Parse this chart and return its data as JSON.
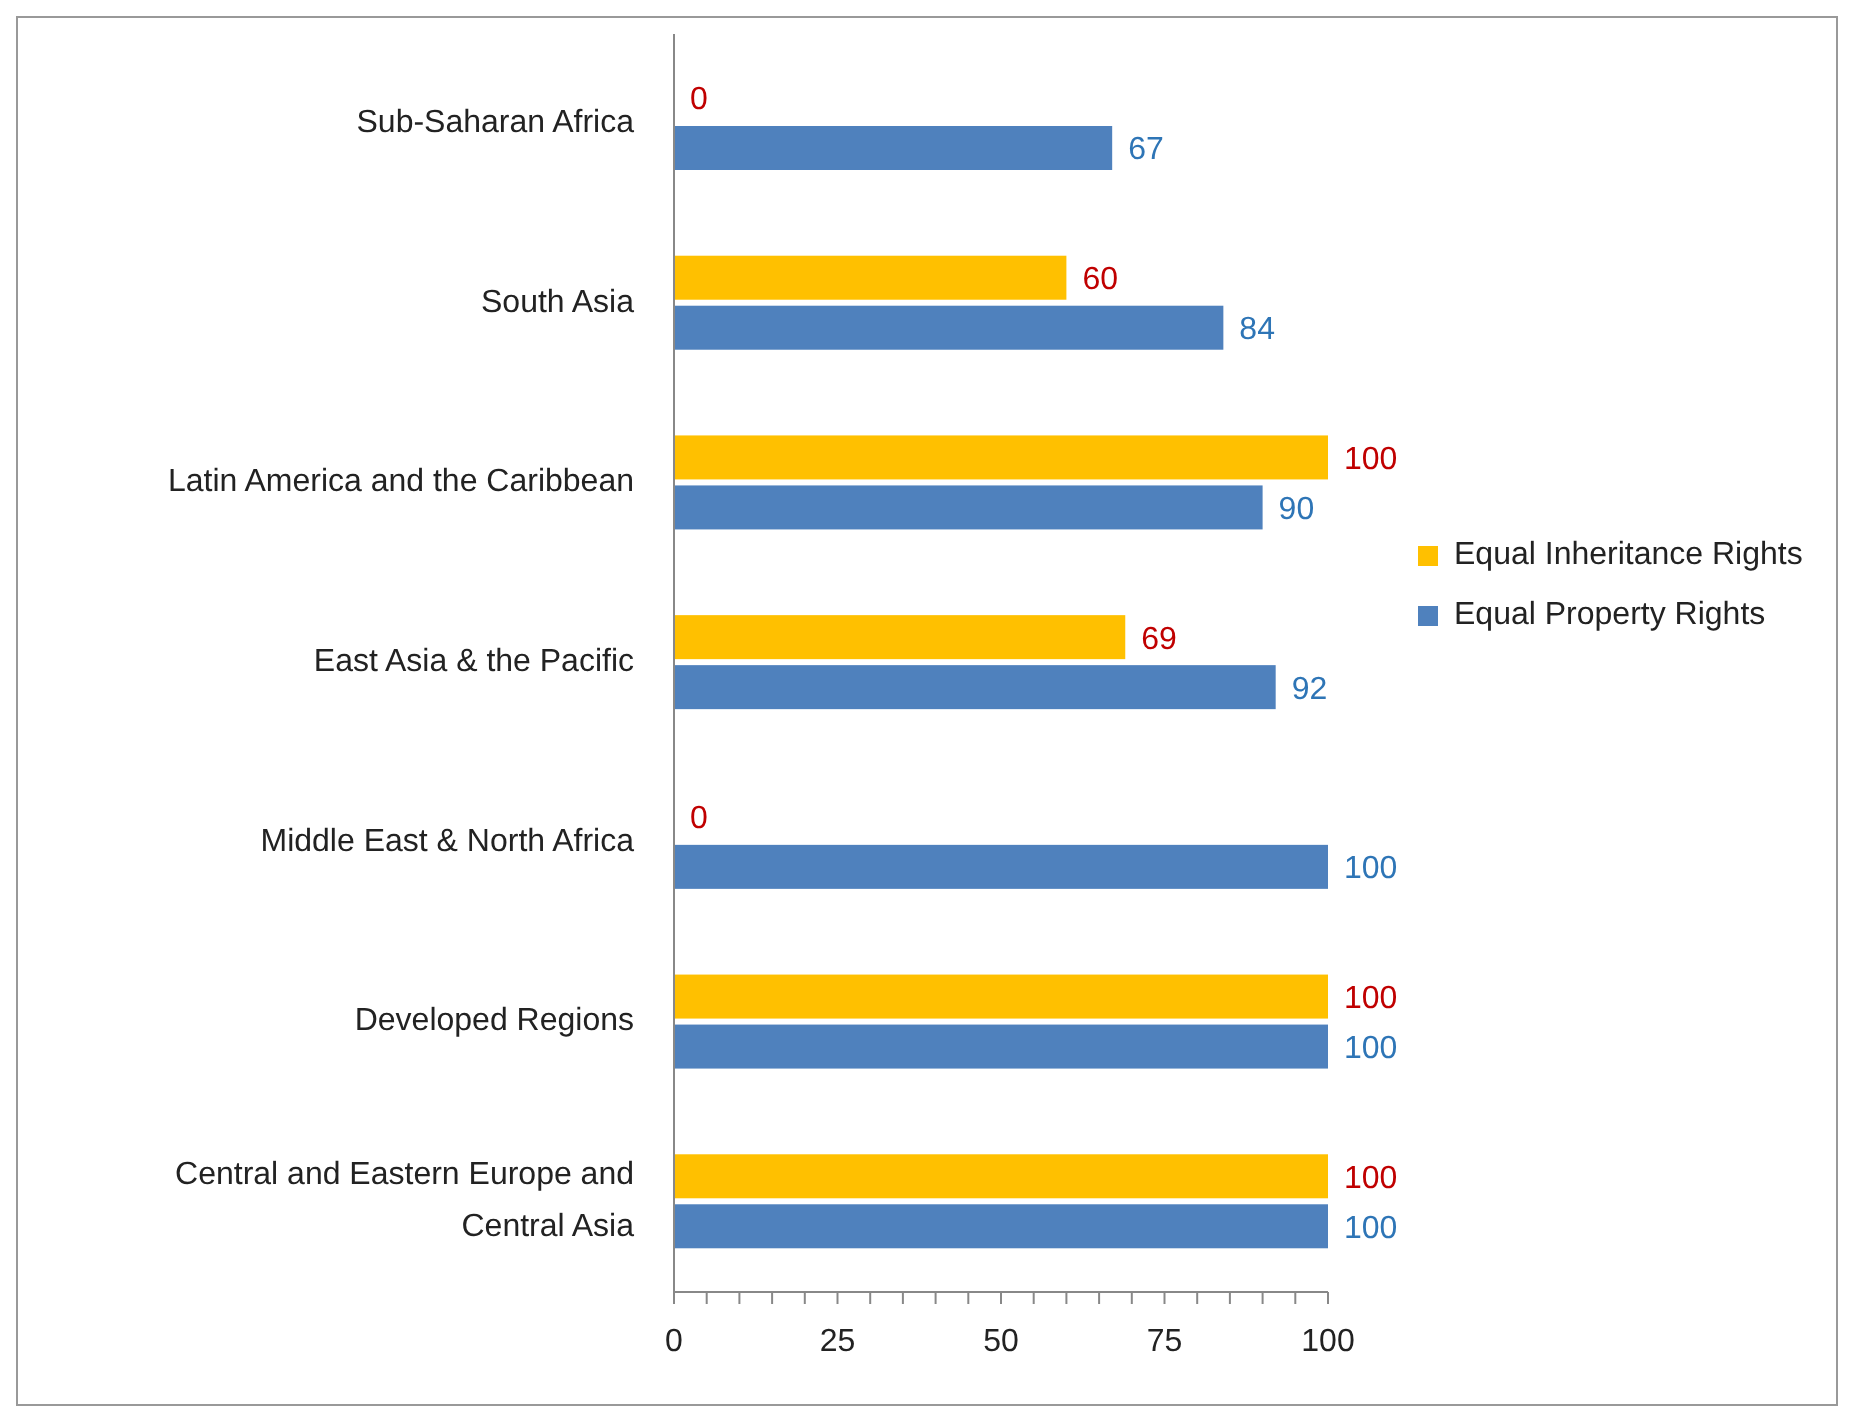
{
  "chart_data": {
    "type": "bar",
    "orientation": "horizontal",
    "categories": [
      "Sub-Saharan Africa",
      "South Asia",
      "Latin America and the Caribbean",
      "East Asia & the Pacific",
      "Middle East & North Africa",
      "Developed Regions",
      "Central and Eastern Europe and Central Asia"
    ],
    "series": [
      {
        "name": "Equal Inheritance Rights",
        "color": "#ffc000",
        "values": [
          0,
          60,
          100,
          69,
          0,
          100,
          100
        ]
      },
      {
        "name": "Equal Property Rights",
        "color": "#4f81bd",
        "values": [
          67,
          84,
          90,
          92,
          100,
          100,
          100
        ]
      }
    ],
    "xlim": [
      0,
      100
    ],
    "xticks": [
      0,
      {
        "value": 5,
        "label": null
      },
      {
        "value": 10,
        "label": null
      },
      {
        "value": 15,
        "label": null
      },
      {
        "value": 20,
        "label": null
      },
      25,
      {
        "value": 30,
        "label": null
      },
      {
        "value": 35,
        "label": null
      },
      {
        "value": 40,
        "label": null
      },
      {
        "value": 45,
        "label": null
      },
      50,
      {
        "value": 55,
        "label": null
      },
      {
        "value": 60,
        "label": null
      },
      {
        "value": 65,
        "label": null
      },
      {
        "value": 70,
        "label": null
      },
      75,
      {
        "value": 80,
        "label": null
      },
      {
        "value": 85,
        "label": null
      },
      {
        "value": 90,
        "label": null
      },
      {
        "value": 95,
        "label": null
      },
      100
    ],
    "data_labels": true,
    "legend": "right",
    "grid": false
  }
}
